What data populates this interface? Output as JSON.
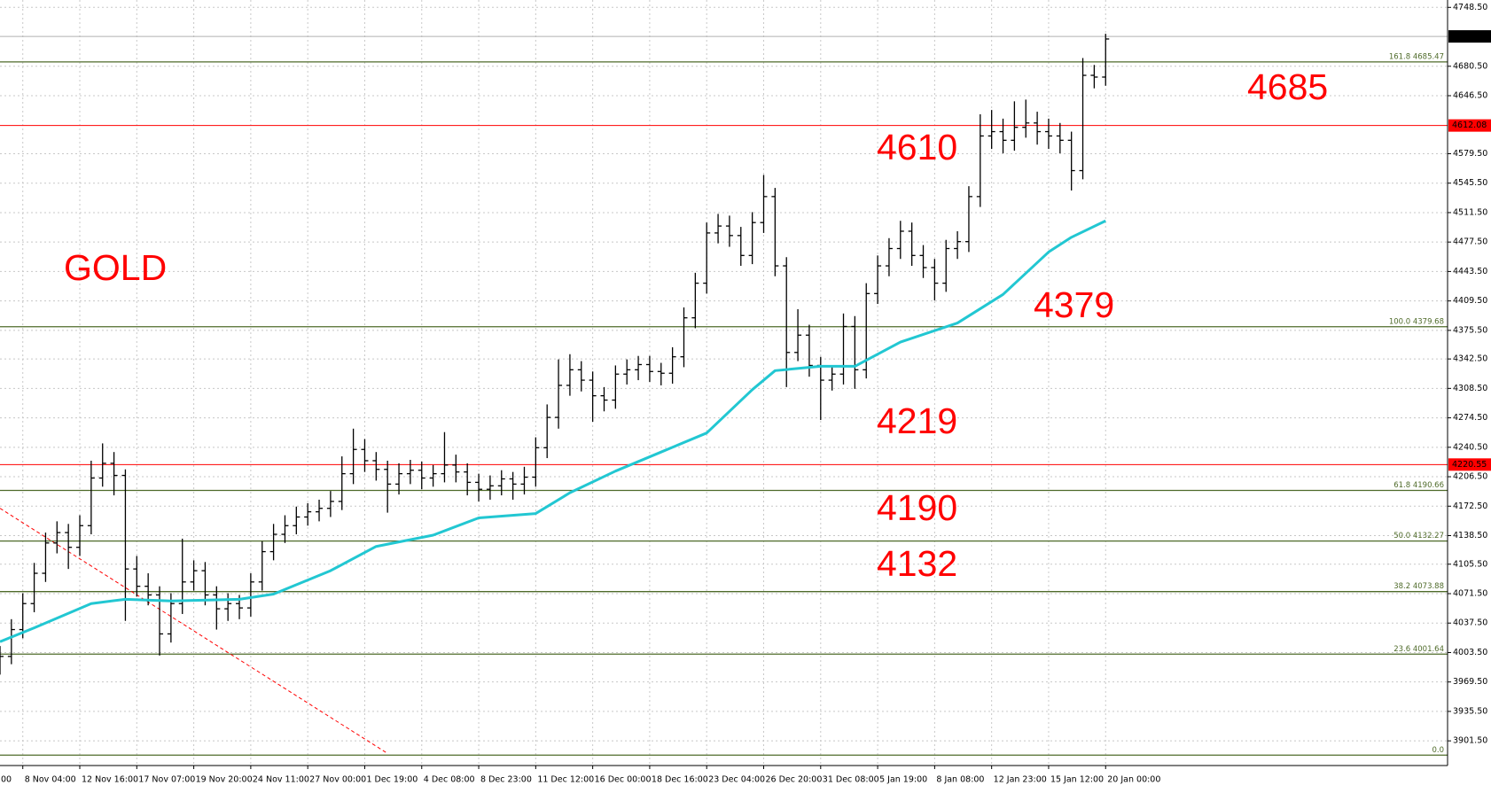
{
  "chart_data": {
    "type": "candlestick",
    "annotations": [
      "GOLD",
      "4685",
      "4610",
      "4379",
      "4219",
      "4190",
      "4132"
    ],
    "ylim": [
      3873,
      4757
    ],
    "xlim": [
      0,
      127
    ],
    "grid": true,
    "yticks": [
      {
        "value": 4748.5,
        "label": "4748.50"
      },
      {
        "value": 4680.5,
        "label": "4680.50"
      },
      {
        "value": 4646.5,
        "label": "4646.50"
      },
      {
        "value": 4579.5,
        "label": "4579.50"
      },
      {
        "value": 4545.5,
        "label": "4545.50"
      },
      {
        "value": 4511.5,
        "label": "4511.50"
      },
      {
        "value": 4477.5,
        "label": "4477.50"
      },
      {
        "value": 4443.5,
        "label": "4443.50"
      },
      {
        "value": 4409.5,
        "label": "4409.50"
      },
      {
        "value": 4375.5,
        "label": "4375.50"
      },
      {
        "value": 4342.5,
        "label": "4342.50"
      },
      {
        "value": 4308.5,
        "label": "4308.50"
      },
      {
        "value": 4274.5,
        "label": "4274.50"
      },
      {
        "value": 4240.5,
        "label": "4240.50"
      },
      {
        "value": 4206.5,
        "label": "4206.50"
      },
      {
        "value": 4172.5,
        "label": "4172.50"
      },
      {
        "value": 4138.5,
        "label": "4138.50"
      },
      {
        "value": 4105.5,
        "label": "4105.50"
      },
      {
        "value": 4071.5,
        "label": "4071.50"
      },
      {
        "value": 4037.5,
        "label": "4037.50"
      },
      {
        "value": 4003.5,
        "label": "4003.50"
      },
      {
        "value": 3969.5,
        "label": "3969.50"
      },
      {
        "value": 3935.5,
        "label": "3935.50"
      },
      {
        "value": 3901.5,
        "label": "3901.50"
      }
    ],
    "xticks": [
      {
        "value": -3,
        "label": "00"
      },
      {
        "value": 2,
        "label": "8 Nov 04:00"
      },
      {
        "value": 7,
        "label": "12 Nov 16:00"
      },
      {
        "value": 12,
        "label": "17 Nov 07:00"
      },
      {
        "value": 17,
        "label": "19 Nov 20:00"
      },
      {
        "value": 22,
        "label": "24 Nov 11:00"
      },
      {
        "value": 27,
        "label": "27 Nov 00:00"
      },
      {
        "value": 32,
        "label": "1 Dec 19:00"
      },
      {
        "value": 37,
        "label": "4 Dec 08:00"
      },
      {
        "value": 42,
        "label": "8 Dec 23:00"
      },
      {
        "value": 47,
        "label": "11 Dec 12:00"
      },
      {
        "value": 52,
        "label": "16 Dec 00:00"
      },
      {
        "value": 57,
        "label": "18 Dec 16:00"
      },
      {
        "value": 62,
        "label": "23 Dec 04:00"
      },
      {
        "value": 67,
        "label": "26 Dec 20:00"
      },
      {
        "value": 72,
        "label": "31 Dec 08:00"
      },
      {
        "value": 77,
        "label": "5 Jan 19:00"
      },
      {
        "value": 82,
        "label": "8 Jan 08:00"
      },
      {
        "value": 87,
        "label": "12 Jan 23:00"
      },
      {
        "value": 92,
        "label": "15 Jan 12:00"
      },
      {
        "value": 97,
        "label": "20 Jan 00:00"
      }
    ],
    "levels": [
      {
        "value": 4685.47,
        "label": "161.8 4685.47",
        "color": "#4f6b2a"
      },
      {
        "value": 4379.68,
        "label": "100.0 4379.68",
        "color": "#4f6b2a"
      },
      {
        "value": 4190.66,
        "label": "61.8 4190.66",
        "color": "#4f6b2a"
      },
      {
        "value": 4132.27,
        "label": "50.0 4132.27",
        "color": "#4f6b2a"
      },
      {
        "value": 4073.88,
        "label": "38.2 4073.88",
        "color": "#4f6b2a"
      },
      {
        "value": 4001.64,
        "label": "23.6 4001.64",
        "color": "#4f6b2a"
      },
      {
        "value": 3885,
        "label": "0.0",
        "color": "#4f6b2a"
      }
    ],
    "price_lines": [
      {
        "value": 4714.95,
        "label": "4714.95",
        "color": "#000000",
        "line_color": "#b0b0b0"
      },
      {
        "value": 4612.08,
        "label": "4612.08",
        "color": "#ff0000",
        "line_color": "#ff0000"
      },
      {
        "value": 4220.55,
        "label": "4220.55",
        "color": "#ff0000",
        "line_color": "#ff0000"
      }
    ],
    "trendline": {
      "color": "#ff0000",
      "x": [
        0,
        34
      ],
      "values": [
        4170,
        3887
      ]
    },
    "moving_average": {
      "color": "#22c7d2",
      "x": [
        0,
        3,
        8,
        11,
        15,
        21,
        24,
        29,
        33,
        38,
        42,
        47,
        50,
        54,
        58,
        62,
        66,
        68,
        72,
        75,
        79,
        84,
        88,
        92,
        94,
        97
      ],
      "values": [
        4016,
        4032,
        4060,
        4065,
        4063,
        4065,
        4071,
        4098,
        4126,
        4139,
        4159,
        4164,
        4188,
        4213,
        4235,
        4257,
        4307,
        4329,
        4334,
        4334,
        4362,
        4384,
        4417,
        4466,
        4483,
        4502
      ]
    },
    "candles": {
      "color": "#000000",
      "x": [
        0,
        1,
        2,
        3,
        4,
        5,
        6,
        7,
        8,
        9,
        10,
        11,
        12,
        13,
        14,
        15,
        16,
        17,
        18,
        19,
        20,
        21,
        22,
        23,
        24,
        25,
        26,
        27,
        28,
        29,
        30,
        31,
        32,
        33,
        34,
        35,
        36,
        37,
        38,
        39,
        40,
        41,
        42,
        43,
        44,
        45,
        46,
        47,
        48,
        49,
        50,
        51,
        52,
        53,
        54,
        55,
        56,
        57,
        58,
        59,
        60,
        61,
        62,
        63,
        64,
        65,
        66,
        67,
        68,
        69,
        70,
        71,
        72,
        73,
        74,
        75,
        76,
        77,
        78,
        79,
        80,
        81,
        82,
        83,
        84,
        85,
        86,
        87,
        88,
        89,
        90,
        91,
        92,
        93,
        94,
        95,
        96,
        97
      ],
      "open": [
        3990,
        3999,
        4030,
        4060,
        4095,
        4130,
        4142,
        4125,
        4150,
        4205,
        4222,
        4208,
        4100,
        4080,
        4070,
        4025,
        4060,
        4085,
        4098,
        4070,
        4054,
        4060,
        4055,
        4085,
        4120,
        4140,
        4150,
        4160,
        4166,
        4170,
        4178,
        4210,
        4238,
        4225,
        4215,
        4198,
        4210,
        4214,
        4205,
        4210,
        4220,
        4212,
        4200,
        4192,
        4196,
        4204,
        4198,
        4206,
        4240,
        4275,
        4312,
        4330,
        4318,
        4300,
        4295,
        4325,
        4330,
        4336,
        4328,
        4326,
        4345,
        4390,
        4430,
        4488,
        4496,
        4485,
        4462,
        4500,
        4530,
        4450,
        4350,
        4370,
        4335,
        4318,
        4325,
        4380,
        4330,
        4418,
        4450,
        4470,
        4490,
        4462,
        4448,
        4430,
        4470,
        4478,
        4530,
        4600,
        4605,
        4595,
        4610,
        4615,
        4605,
        4600,
        4595,
        4560,
        4670,
        4668
      ],
      "high": [
        4011,
        4042,
        4072,
        4107,
        4142,
        4155,
        4152,
        4162,
        4225,
        4245,
        4235,
        4215,
        4115,
        4095,
        4080,
        4072,
        4135,
        4110,
        4108,
        4080,
        4072,
        4070,
        4095,
        4132,
        4152,
        4162,
        4172,
        4176,
        4180,
        4190,
        4230,
        4262,
        4250,
        4235,
        4225,
        4222,
        4226,
        4224,
        4220,
        4258,
        4232,
        4222,
        4210,
        4208,
        4214,
        4212,
        4218,
        4252,
        4290,
        4342,
        4348,
        4340,
        4328,
        4310,
        4335,
        4342,
        4346,
        4346,
        4338,
        4356,
        4402,
        4442,
        4500,
        4510,
        4508,
        4495,
        4512,
        4555,
        4540,
        4460,
        4400,
        4382,
        4345,
        4335,
        4395,
        4392,
        4430,
        4462,
        4482,
        4502,
        4500,
        4474,
        4458,
        4480,
        4490,
        4542,
        4625,
        4630,
        4620,
        4640,
        4642,
        4628,
        4620,
        4615,
        4605,
        4690,
        4682,
        4718
      ],
      "low": [
        3978,
        3990,
        4020,
        4050,
        4085,
        4118,
        4100,
        4115,
        4140,
        4195,
        4185,
        4040,
        4068,
        4058,
        4000,
        4015,
        4048,
        4075,
        4058,
        4030,
        4040,
        4042,
        4045,
        4075,
        4110,
        4130,
        4140,
        4150,
        4155,
        4160,
        4168,
        4198,
        4212,
        4202,
        4165,
        4186,
        4198,
        4192,
        4195,
        4200,
        4200,
        4185,
        4178,
        4180,
        4185,
        4180,
        4186,
        4195,
        4228,
        4262,
        4300,
        4305,
        4270,
        4282,
        4285,
        4313,
        4318,
        4316,
        4312,
        4314,
        4333,
        4378,
        4418,
        4476,
        4472,
        4450,
        4452,
        4488,
        4438,
        4310,
        4340,
        4322,
        4272,
        4306,
        4313,
        4308,
        4320,
        4406,
        4438,
        4458,
        4450,
        4436,
        4410,
        4420,
        4458,
        4466,
        4518,
        4585,
        4580,
        4583,
        4598,
        4590,
        4585,
        4580,
        4537,
        4550,
        4655,
        4658
      ],
      "close": [
        3999,
        4030,
        4060,
        4095,
        4130,
        4142,
        4125,
        4150,
        4205,
        4222,
        4208,
        4100,
        4080,
        4070,
        4025,
        4060,
        4085,
        4098,
        4070,
        4054,
        4060,
        4055,
        4085,
        4120,
        4140,
        4150,
        4160,
        4166,
        4170,
        4178,
        4210,
        4238,
        4225,
        4215,
        4198,
        4210,
        4214,
        4205,
        4210,
        4220,
        4212,
        4200,
        4192,
        4196,
        4204,
        4198,
        4206,
        4240,
        4275,
        4312,
        4330,
        4318,
        4300,
        4295,
        4325,
        4330,
        4336,
        4328,
        4326,
        4345,
        4390,
        4430,
        4488,
        4496,
        4485,
        4462,
        4500,
        4530,
        4450,
        4350,
        4370,
        4335,
        4318,
        4325,
        4380,
        4330,
        4418,
        4450,
        4470,
        4490,
        4462,
        4448,
        4430,
        4470,
        4478,
        4530,
        4600,
        4605,
        4595,
        4610,
        4615,
        4605,
        4600,
        4595,
        4560,
        4670,
        4668,
        4712
      ]
    }
  }
}
